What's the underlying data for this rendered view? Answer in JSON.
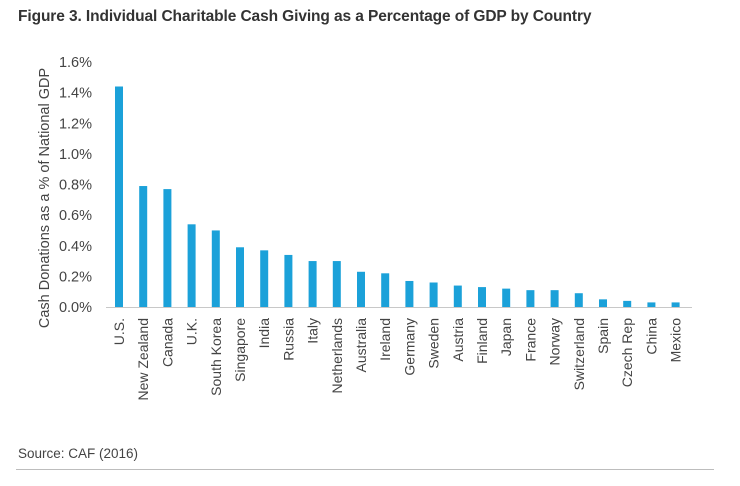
{
  "figure": {
    "title": "Figure 3. Individual Charitable Cash Giving as a Percentage of GDP by Country",
    "source": "Source: CAF (2016)"
  },
  "chart_data": {
    "type": "bar",
    "title": "Figure 3. Individual Charitable Cash Giving as a Percentage of GDP by Country",
    "xlabel": "",
    "ylabel": "Cash Donations as a % of National GDP",
    "categories": [
      "U.S.",
      "New Zealand",
      "Canada",
      "U.K.",
      "South Korea",
      "Singapore",
      "India",
      "Russia",
      "Italy",
      "Netherlands",
      "Australia",
      "Ireland",
      "Germany",
      "Sweden",
      "Austria",
      "Finland",
      "Japan",
      "France",
      "Norway",
      "Switzerland",
      "Spain",
      "Czech Rep",
      "China",
      "Mexico"
    ],
    "values": [
      1.44,
      0.79,
      0.77,
      0.54,
      0.5,
      0.39,
      0.37,
      0.34,
      0.3,
      0.3,
      0.23,
      0.22,
      0.17,
      0.16,
      0.14,
      0.13,
      0.12,
      0.11,
      0.11,
      0.09,
      0.05,
      0.04,
      0.03,
      0.03
    ],
    "ylim": [
      0,
      1.6
    ],
    "yticks": [
      "0.0%",
      "0.2%",
      "0.4%",
      "0.6%",
      "0.8%",
      "1.0%",
      "1.2%",
      "1.4%",
      "1.6%"
    ],
    "grid": false,
    "bar_color": "#1ba1d9"
  }
}
